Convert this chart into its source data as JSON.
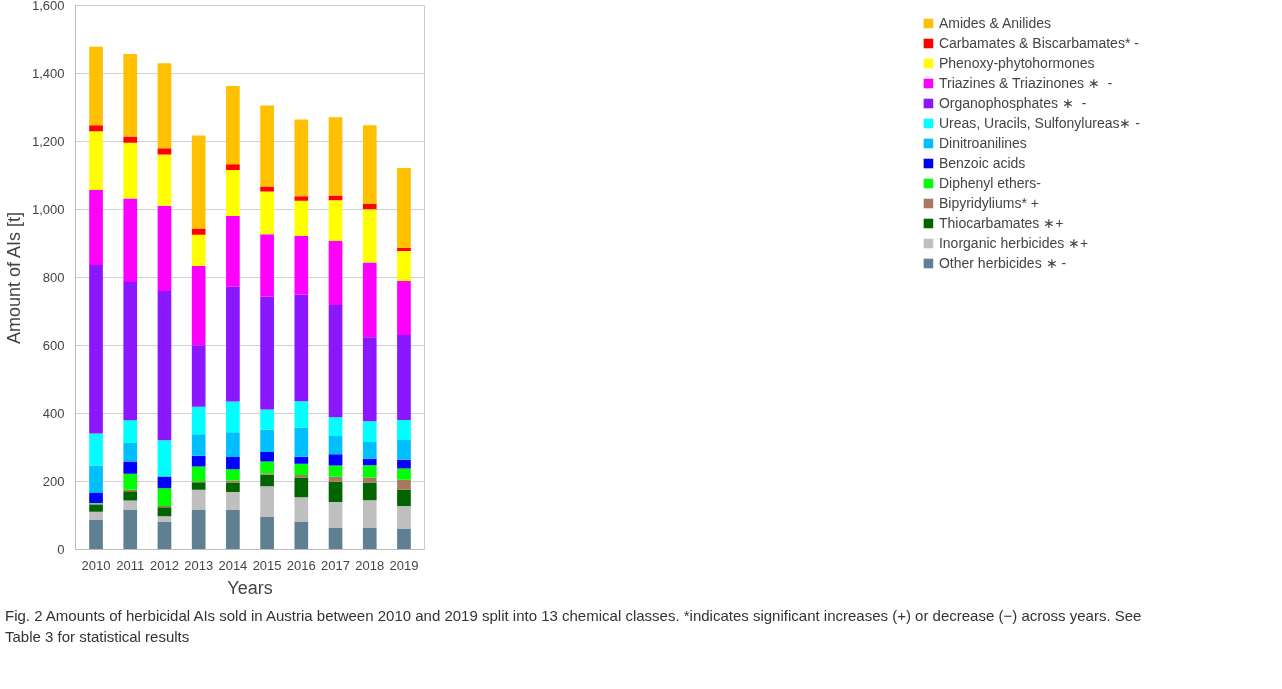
{
  "chart_data": {
    "type": "bar",
    "stacked": true,
    "xlabel": "Years",
    "ylabel": "Amount of AIs [t]",
    "categories": [
      "2010",
      "2011",
      "2012",
      "2013",
      "2014",
      "2015",
      "2016",
      "2017",
      "2018",
      "2019"
    ],
    "ylim": [
      0,
      1600
    ],
    "yticks": [
      0,
      200,
      400,
      600,
      800,
      {
        "value": 1000,
        "label": "1,000"
      },
      {
        "value": 1200,
        "label": "1,200"
      },
      {
        "value": 1400,
        "label": "1,400"
      },
      {
        "value": 1600,
        "label": "1,600"
      }
    ],
    "grid": "y",
    "legend": "right",
    "series": [
      {
        "name": "Other herbicides ∗ -",
        "color": "#5f7f93",
        "values": [
          87,
          118,
          81,
          118,
          116,
          97,
          82,
          65,
          65,
          62
        ]
      },
      {
        "name": "Inorganic herbicides ∗+",
        "color": "#bfbfbf",
        "values": [
          24,
          26,
          17,
          58,
          53,
          89,
          72,
          75,
          80,
          66
        ]
      },
      {
        "name": "Thiocarbamates ∗+",
        "color": "#006400",
        "values": [
          21,
          27,
          26,
          22,
          28,
          34,
          58,
          59,
          52,
          48
        ]
      },
      {
        "name": "Bipyridyliums* +",
        "color": "#a97860",
        "values": [
          3,
          5,
          4,
          3,
          6,
          4,
          7,
          15,
          15,
          29
        ]
      },
      {
        "name": "Diphenyl ethers-",
        "color": "#00ff00",
        "values": [
          2,
          47,
          52,
          43,
          33,
          35,
          33,
          33,
          36,
          33
        ]
      },
      {
        "name": "Benzoic acids",
        "color": "#0000ff",
        "values": [
          29,
          36,
          35,
          32,
          36,
          28,
          21,
          33,
          19,
          26
        ]
      },
      {
        "name": "Dinitroanilines",
        "color": "#00bfff",
        "values": [
          81,
          54,
          0,
          63,
          73,
          65,
          86,
          54,
          49,
          58
        ]
      },
      {
        "name": "Ureas, Uracils, Sulfonylureas∗ -",
        "color": "#00ffff",
        "values": [
          94,
          67,
          106,
          81,
          90,
          60,
          77,
          55,
          61,
          59
        ]
      },
      {
        "name": "Organophosphates ∗  -",
        "color": "#8a17ff",
        "values": [
          496,
          407,
          439,
          181,
          338,
          332,
          314,
          330,
          247,
          250
        ]
      },
      {
        "name": "Triazines & Triazinones ∗  -",
        "color": "#ff00ff",
        "values": [
          220,
          245,
          251,
          233,
          208,
          183,
          172,
          188,
          220,
          159
        ]
      },
      {
        "name": "Phenoxy-phytohormones",
        "color": "#ffff00",
        "values": [
          173,
          164,
          151,
          92,
          135,
          126,
          104,
          120,
          157,
          88
        ]
      },
      {
        "name": "Carbamates & Biscarbamates* -",
        "color": "#ff0000",
        "values": [
          18,
          19,
          18,
          18,
          17,
          15,
          13,
          14,
          15,
          9
        ]
      },
      {
        "name": "Amides & Anilides",
        "color": "#ffc000",
        "values": [
          231,
          242,
          250,
          274,
          230,
          238,
          226,
          230,
          232,
          235
        ]
      }
    ],
    "annotations": [
      "Fig. 2  Amounts of herbicidal AIs sold in Austria between 2010 and 2019 split into 13 chemical classes. *indicates significant increases (+) or decrease (−) across years. See Table 3 for statistical results"
    ]
  }
}
